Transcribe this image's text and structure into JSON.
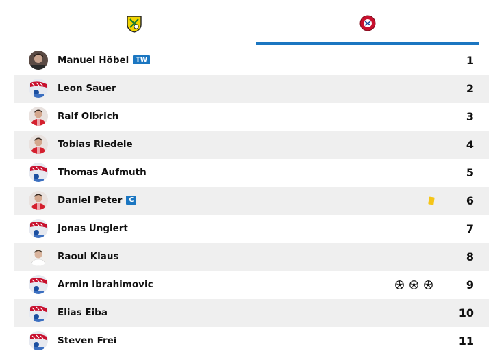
{
  "tabs": {
    "home_icon": "yellow-club-crest-icon",
    "away_icon": "red-club-crest-icon",
    "active": "away",
    "accent": "#1b76c1"
  },
  "players": [
    {
      "name": "Manuel Höbel",
      "badge": "TW",
      "number": "1",
      "avatar": "dark-photo",
      "events": []
    },
    {
      "name": "Leon Sauer",
      "badge": "",
      "number": "2",
      "avatar": "placeholder",
      "events": []
    },
    {
      "name": "Ralf Olbrich",
      "badge": "",
      "number": "3",
      "avatar": "red-photo",
      "events": []
    },
    {
      "name": "Tobias Riedele",
      "badge": "",
      "number": "4",
      "avatar": "red-photo",
      "events": []
    },
    {
      "name": "Thomas Aufmuth",
      "badge": "",
      "number": "5",
      "avatar": "placeholder",
      "events": []
    },
    {
      "name": "Daniel Peter",
      "badge": "C",
      "number": "6",
      "avatar": "red-photo",
      "events": [
        "yellow-card"
      ]
    },
    {
      "name": "Jonas Unglert",
      "badge": "",
      "number": "7",
      "avatar": "placeholder",
      "events": []
    },
    {
      "name": "Raoul Klaus",
      "badge": "",
      "number": "8",
      "avatar": "light-photo",
      "events": []
    },
    {
      "name": "Armin Ibrahimovic",
      "badge": "",
      "number": "9",
      "avatar": "placeholder",
      "events": [
        "goal",
        "goal",
        "goal"
      ]
    },
    {
      "name": "Elias Eiba",
      "badge": "",
      "number": "10",
      "avatar": "placeholder",
      "events": []
    },
    {
      "name": "Steven Frei",
      "badge": "",
      "number": "11",
      "avatar": "placeholder",
      "events": []
    }
  ]
}
